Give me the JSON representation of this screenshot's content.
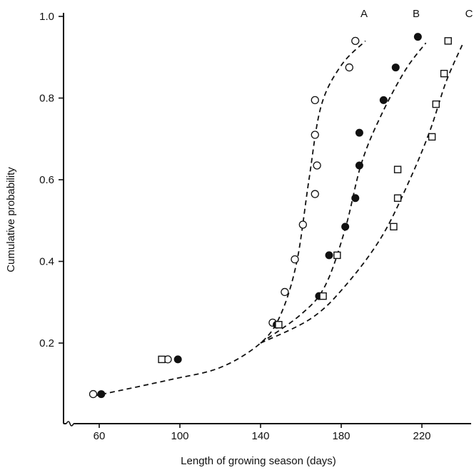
{
  "chart_data": {
    "type": "scatter",
    "title": "",
    "xlabel": "Length of growing season (days)",
    "ylabel": "Cumulative probability",
    "xlim": [
      40,
      245
    ],
    "ylim": [
      0.0,
      1.0
    ],
    "x_ticks": [
      60,
      100,
      140,
      180,
      220
    ],
    "y_ticks": [
      0.2,
      0.4,
      0.6,
      0.8,
      1.0
    ],
    "x_tick_labels": [
      "60",
      "100",
      "140",
      "180",
      "220"
    ],
    "y_tick_labels": [
      "0.2",
      "0.4",
      "0.6",
      "0.8",
      "1.0"
    ],
    "grid": false,
    "axis_break_marker": "x-axis near 48",
    "curve_labels": [
      "A",
      "B",
      "C"
    ],
    "series": [
      {
        "name": "A",
        "marker": "open-circle",
        "points": [
          [
            57,
            0.075
          ],
          [
            94,
            0.16
          ],
          [
            146,
            0.25
          ],
          [
            152,
            0.325
          ],
          [
            157,
            0.405
          ],
          [
            161,
            0.49
          ],
          [
            167,
            0.565
          ],
          [
            167,
            0.71
          ],
          [
            168,
            0.635
          ],
          [
            167,
            0.795
          ],
          [
            184,
            0.875
          ],
          [
            187,
            0.94
          ]
        ],
        "curve": [
          [
            57,
            0.07
          ],
          [
            95,
            0.11
          ],
          [
            120,
            0.14
          ],
          [
            140,
            0.2
          ],
          [
            150,
            0.27
          ],
          [
            158,
            0.4
          ],
          [
            164,
            0.6
          ],
          [
            170,
            0.78
          ],
          [
            180,
            0.88
          ],
          [
            192,
            0.94
          ]
        ]
      },
      {
        "name": "B",
        "marker": "filled-circle",
        "points": [
          [
            61,
            0.075
          ],
          [
            99,
            0.16
          ],
          [
            148,
            0.245
          ],
          [
            169,
            0.315
          ],
          [
            174,
            0.415
          ],
          [
            182,
            0.485
          ],
          [
            187,
            0.555
          ],
          [
            189,
            0.635
          ],
          [
            189,
            0.715
          ],
          [
            201,
            0.795
          ],
          [
            207,
            0.875
          ],
          [
            218,
            0.95
          ]
        ],
        "curve": [
          [
            140,
            0.2
          ],
          [
            160,
            0.27
          ],
          [
            172,
            0.34
          ],
          [
            182,
            0.48
          ],
          [
            190,
            0.64
          ],
          [
            200,
            0.76
          ],
          [
            212,
            0.87
          ],
          [
            222,
            0.935
          ]
        ]
      },
      {
        "name": "C",
        "marker": "open-square",
        "points": [
          [
            91,
            0.16
          ],
          [
            149,
            0.245
          ],
          [
            171,
            0.315
          ],
          [
            178,
            0.415
          ],
          [
            206,
            0.485
          ],
          [
            208,
            0.555
          ],
          [
            208,
            0.625
          ],
          [
            225,
            0.705
          ],
          [
            227,
            0.785
          ],
          [
            231,
            0.86
          ],
          [
            233,
            0.94
          ]
        ],
        "curve": [
          [
            140,
            0.2
          ],
          [
            165,
            0.26
          ],
          [
            182,
            0.34
          ],
          [
            200,
            0.46
          ],
          [
            214,
            0.6
          ],
          [
            224,
            0.72
          ],
          [
            232,
            0.84
          ],
          [
            240,
            0.93
          ]
        ]
      }
    ]
  }
}
